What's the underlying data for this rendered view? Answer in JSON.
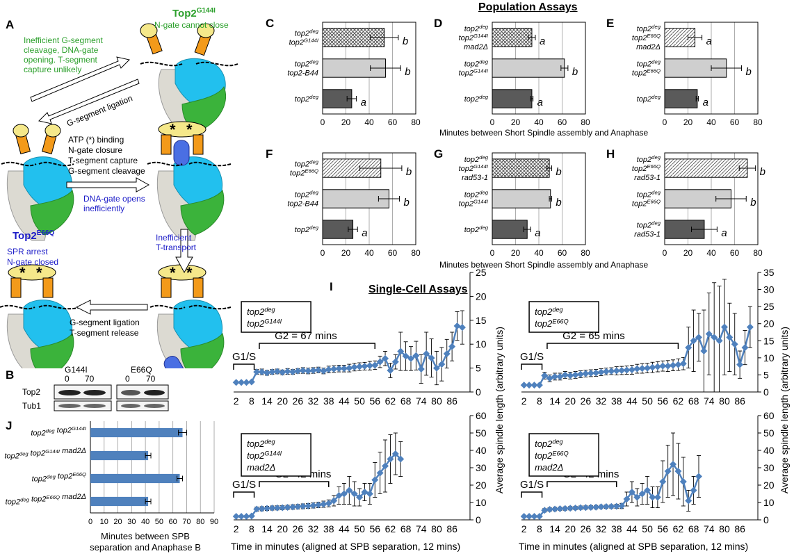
{
  "panels": {
    "a": "A",
    "b": "B",
    "c": "C",
    "d": "D",
    "e": "E",
    "f": "F",
    "g": "G",
    "h": "H",
    "i": "I",
    "j": "J"
  },
  "headings": {
    "population": "Population Assays",
    "single_cell": "Single-Cell Assays"
  },
  "diagram": {
    "top2_g144i": {
      "name": "Top2",
      "sup": "G144I",
      "note": "N-gate cannot close"
    },
    "top2_e66q": {
      "name": "Top2",
      "sup": "E66Q",
      "note1": "SPR arrest",
      "note2": "N-gate closed"
    },
    "ineff": [
      "Inefficient G-segment",
      "cleavage, DNA-gate",
      "opening. T-segment",
      "capture unlikely"
    ],
    "g_lig_diag": "G-segment ligation",
    "atp": [
      "ATP (*) binding",
      "N-gate closure",
      "T-segment capture",
      "G-segment cleavage"
    ],
    "dna_gate": [
      "DNA-gate opens",
      "inefficiently"
    ],
    "ineff_t": [
      "Inefficient",
      "T-transport"
    ],
    "release": [
      "G-segment ligation",
      "T-segment release"
    ],
    "star": "*"
  },
  "blot": {
    "g144i": "G144I",
    "e66q": "E66Q",
    "t0": "0",
    "t70": "70",
    "t0b": "0",
    "t70b": "70",
    "row1": "Top2",
    "row2": "Tub1"
  },
  "axis_titles": {
    "pop_top": "Minutes between Short Spindle assembly and Anaphase",
    "pop_bottom": "Minutes between Short Spindle assembly and Anaphase",
    "i_x_top": "Time in minutes (aligned at SPB separation, 12 mins)",
    "i_x_bottom": "Time in minutes (aligned at SPB separation, 12 mins)",
    "i_y": "Average spindle length (arbitrary units)",
    "j_x1": "Minutes between SPB",
    "j_x2": "separation and Anaphase B"
  },
  "single_cell_labels": {
    "tl_box": [
      "top2|deg",
      "top2|G144I"
    ],
    "tr_box": [
      "top2|deg",
      "top2|E66Q"
    ],
    "bl_box": [
      "top2|deg",
      "top2|G144I",
      "mad2Δ"
    ],
    "br_box": [
      "top2|deg",
      "top2|E66Q",
      "mad2Δ"
    ],
    "g2_tl": "G2 = 67 mins",
    "g2_tr": "G2 = 65 mins",
    "g2_bl": "G2=42 mins",
    "g2_br": "G2=42 mins",
    "g1s": "G1/S"
  },
  "colors": {
    "dark_bar": "#5a5a5a",
    "light_bar": "#cfcfcf",
    "series_blue": "#4f81bd",
    "green_text": "#2ca02c",
    "blue_text": "#1c1cc8",
    "gold": "#f5e88a",
    "orange": "#f39a1a",
    "cyan": "#22c0ee",
    "green_domain": "#3bb33b",
    "grey_domain": "#dcdad2"
  },
  "chart_data": [
    {
      "id": "C",
      "type": "bar",
      "categories": [
        "top2|deg//top2|G144I",
        "top2|deg//top2-B44",
        "top2|deg"
      ],
      "values": [
        53,
        54,
        25
      ],
      "errors": [
        12,
        13,
        4
      ],
      "fills": [
        "cross",
        "light",
        "dark"
      ],
      "letters": [
        "b",
        "b",
        "a"
      ],
      "xlim": [
        0,
        80
      ],
      "xticks": [
        "0",
        "20",
        "40",
        "60",
        "80"
      ]
    },
    {
      "id": "D",
      "type": "bar",
      "categories": [
        "top2|deg//top2|G144I//mad2Δ",
        "top2|deg//top2|G144I",
        "top2|deg"
      ],
      "values": [
        34,
        62,
        34
      ],
      "errors": [
        3,
        3,
        1
      ],
      "fills": [
        "cross",
        "light",
        "dark"
      ],
      "letters": [
        "a",
        "b",
        "a"
      ],
      "xlim": [
        0,
        80
      ],
      "xticks": [
        "0",
        "20",
        "40",
        "60",
        "80"
      ]
    },
    {
      "id": "E",
      "type": "bar",
      "categories": [
        "top2|deg//top2|E66Q//mad2Δ",
        "top2|deg//top2|E66Q",
        "top2|deg"
      ],
      "values": [
        26,
        53,
        28
      ],
      "errors": [
        6,
        13,
        1
      ],
      "fills": [
        "hatch",
        "light",
        "dark"
      ],
      "letters": [
        "a",
        "b",
        "a"
      ],
      "xlim": [
        0,
        80
      ],
      "xticks": [
        "0",
        "20",
        "40",
        "60",
        "80"
      ]
    },
    {
      "id": "F",
      "type": "bar",
      "categories": [
        "top2|deg//top2|E66Q",
        "top2|deg//top2-B44",
        "top2|deg"
      ],
      "values": [
        50,
        57,
        26
      ],
      "errors": [
        18,
        9,
        4
      ],
      "fills": [
        "hatch",
        "light",
        "dark"
      ],
      "letters": [
        "b",
        "b",
        "a"
      ],
      "xlim": [
        0,
        80
      ],
      "xticks": [
        "0",
        "20",
        "40",
        "60",
        "80"
      ]
    },
    {
      "id": "G",
      "type": "bar",
      "categories": [
        "top2|deg//top2|G144I//rad53-1",
        "top2|deg//top2|G144I",
        "top2|deg"
      ],
      "values": [
        49,
        50,
        30
      ],
      "errors": [
        2,
        1,
        3
      ],
      "fills": [
        "cross",
        "light",
        "dark"
      ],
      "letters": [
        "b",
        "b",
        "a"
      ],
      "xlim": [
        0,
        80
      ],
      "xticks": [
        "0",
        "20",
        "40",
        "60",
        "80"
      ]
    },
    {
      "id": "H",
      "type": "bar",
      "categories": [
        "top2|deg//top2|E66Q//rad53-1",
        "top2|deg//top2|E66Q",
        "top2|deg//rad53-1"
      ],
      "values": [
        71,
        57,
        34
      ],
      "errors": [
        7,
        13,
        11
      ],
      "fills": [
        "hatch",
        "light",
        "dark"
      ],
      "letters": [
        "b",
        "b",
        "a"
      ],
      "xlim": [
        0,
        80
      ],
      "xticks": [
        "0",
        "20",
        "40",
        "60",
        "80"
      ]
    },
    {
      "id": "I-top2deg-top2G144I",
      "type": "line",
      "x": [
        2,
        4,
        6,
        8,
        10,
        12,
        14,
        16,
        18,
        20,
        22,
        24,
        26,
        28,
        30,
        32,
        34,
        36,
        38,
        40,
        42,
        44,
        46,
        48,
        50,
        52,
        54,
        56,
        58,
        60,
        62,
        64,
        66,
        68,
        70,
        72,
        74,
        76,
        78,
        80,
        82,
        84,
        86,
        88,
        90
      ],
      "y": [
        2,
        2,
        2,
        2.1,
        4.2,
        4.2,
        4,
        4.2,
        4.3,
        4.1,
        4.3,
        4.2,
        4.4,
        4.5,
        4.4,
        4.5,
        4.6,
        4.4,
        4.7,
        4.8,
        4.9,
        4.9,
        5,
        5.2,
        5.3,
        5.4,
        5.5,
        5.6,
        6.3,
        7,
        4.5,
        6.3,
        8.5,
        7.5,
        7,
        7.6,
        4.8,
        8,
        7.1,
        5,
        5.8,
        8,
        9.5,
        13.8,
        13.5
      ],
      "err": [
        0,
        0,
        0,
        0,
        0.5,
        0.6,
        0.5,
        0.5,
        0.5,
        0.5,
        0.6,
        0.5,
        0.5,
        0.6,
        0.6,
        0.6,
        0.6,
        0.6,
        0.7,
        0.7,
        0.7,
        0.7,
        0.8,
        0.8,
        0.8,
        0.8,
        0.9,
        0.9,
        1.2,
        1.5,
        1.5,
        1.5,
        4,
        3,
        2.5,
        3,
        3,
        4.5,
        4,
        3.5,
        3.5,
        3,
        3,
        3,
        3.5
      ],
      "xticks": [
        "2",
        "8",
        "14",
        "20",
        "26",
        "32",
        "38",
        "44",
        "50",
        "56",
        "62",
        "68",
        "74",
        "80",
        "86"
      ],
      "ylim": [
        0,
        25
      ],
      "yticks": [
        "0",
        "5",
        "10",
        "15",
        "20",
        "25"
      ]
    },
    {
      "id": "I-top2deg-top2E66Q",
      "type": "line",
      "x": [
        2,
        4,
        6,
        8,
        10,
        12,
        14,
        16,
        18,
        20,
        22,
        24,
        26,
        28,
        30,
        32,
        34,
        36,
        38,
        40,
        42,
        44,
        46,
        48,
        50,
        52,
        54,
        56,
        58,
        60,
        62,
        64,
        66,
        68,
        70,
        72,
        74,
        76,
        78,
        80,
        82,
        84,
        86,
        88,
        90
      ],
      "y": [
        2,
        2,
        2,
        2,
        4.8,
        4,
        4.5,
        4.5,
        5,
        4.8,
        5,
        5.2,
        5.4,
        5.5,
        5.6,
        5.8,
        6,
        6.1,
        6.2,
        6.3,
        6.4,
        6.5,
        6.8,
        6.9,
        7,
        7.2,
        7.4,
        7.6,
        7.6,
        7.8,
        8,
        8.3,
        13,
        15,
        16,
        12,
        17,
        16,
        15,
        19,
        16,
        14,
        8,
        13,
        19
      ],
      "err": [
        0,
        0,
        0,
        0,
        1,
        1,
        1,
        1,
        1,
        1,
        1,
        1,
        1,
        1,
        1,
        1,
        1,
        1,
        1.2,
        1.2,
        1.2,
        1.3,
        1.3,
        1.4,
        1.4,
        1.5,
        1.5,
        1.5,
        1.6,
        1.6,
        1.7,
        1.8,
        6,
        9,
        7,
        12,
        12,
        16,
        16,
        14,
        10,
        9,
        4,
        5,
        6
      ],
      "xticks": [
        "2",
        "8",
        "14",
        "20",
        "26",
        "32",
        "38",
        "44",
        "50",
        "56",
        "62",
        "68",
        "74",
        "80",
        "86"
      ],
      "ylim": [
        0,
        35
      ],
      "yticks": [
        "0",
        "5",
        "10",
        "15",
        "20",
        "25",
        "30",
        "35"
      ]
    },
    {
      "id": "I-top2deg-top2G144I-mad2",
      "type": "line",
      "x": [
        2,
        4,
        6,
        8,
        10,
        12,
        14,
        16,
        18,
        20,
        22,
        24,
        26,
        28,
        30,
        32,
        34,
        36,
        38,
        40,
        42,
        44,
        46,
        48,
        50,
        52,
        54,
        56,
        58,
        60,
        62,
        64,
        66
      ],
      "y": [
        2,
        2,
        2,
        2.2,
        6.2,
        6.4,
        6.6,
        6.8,
        6.9,
        7,
        7.2,
        7.4,
        7.6,
        7.8,
        8,
        8.3,
        8.6,
        9,
        9.5,
        11,
        14,
        15,
        17,
        15,
        13,
        16,
        15,
        23,
        27,
        31,
        35,
        38,
        35
      ],
      "err": [
        0,
        0,
        0,
        0,
        1.2,
        1.2,
        1.2,
        1.2,
        1.2,
        1.2,
        1.2,
        1.3,
        1.3,
        1.4,
        1.4,
        1.5,
        1.6,
        1.8,
        2,
        3,
        5,
        6,
        8,
        7,
        5,
        5,
        6,
        10,
        12,
        15,
        14,
        12,
        10
      ],
      "xticks": [
        "2",
        "8",
        "14",
        "20",
        "26",
        "32",
        "38",
        "44",
        "50",
        "56",
        "62",
        "68",
        "74",
        "80",
        "86"
      ],
      "ylim": [
        0,
        60
      ],
      "yticks": [
        "0",
        "10",
        "20",
        "30",
        "40",
        "50",
        "60"
      ]
    },
    {
      "id": "I-top2deg-top2E66Q-mad2",
      "type": "line",
      "x": [
        2,
        4,
        6,
        8,
        10,
        12,
        14,
        16,
        18,
        20,
        22,
        24,
        26,
        28,
        30,
        32,
        34,
        36,
        38,
        40,
        42,
        44,
        46,
        48,
        50,
        52,
        54,
        56,
        58,
        60,
        62,
        64,
        66,
        68,
        70
      ],
      "y": [
        2,
        2,
        2,
        2,
        5.5,
        6,
        6.2,
        6.4,
        6.5,
        6.7,
        6.8,
        7,
        7.1,
        7.2,
        7.3,
        7.5,
        7.6,
        7.7,
        7.8,
        8,
        12,
        16,
        13,
        15,
        17,
        13,
        13,
        22,
        28,
        32,
        28,
        22,
        11,
        17,
        25
      ],
      "err": [
        0,
        0,
        0,
        0,
        1,
        1,
        1,
        1,
        1,
        1,
        1,
        1,
        1,
        1,
        1,
        1,
        1,
        1,
        1.2,
        1.5,
        4,
        6,
        5,
        6,
        8,
        6,
        6,
        12,
        15,
        18,
        16,
        14,
        6,
        8,
        12
      ],
      "xticks": [
        "2",
        "8",
        "14",
        "20",
        "26",
        "32",
        "38",
        "44",
        "50",
        "56",
        "62",
        "68",
        "74",
        "80",
        "86"
      ],
      "ylim": [
        0,
        60
      ],
      "yticks": [
        "0",
        "10",
        "20",
        "30",
        "40",
        "50",
        "60"
      ]
    },
    {
      "id": "J",
      "type": "bar",
      "categories": [
        "top2|deg top2|G144I",
        "top2|deg top2|G144I mad2Δ",
        "top2|deg top2|E66Q",
        "top2|deg top2|E66Q mad2Δ"
      ],
      "values": [
        67,
        42,
        65,
        42
      ],
      "errors": [
        3,
        2,
        2,
        2
      ],
      "xlim": [
        0,
        90
      ],
      "xticks": [
        "0",
        "10",
        "20",
        "30",
        "40",
        "50",
        "60",
        "70",
        "80",
        "90"
      ]
    }
  ]
}
